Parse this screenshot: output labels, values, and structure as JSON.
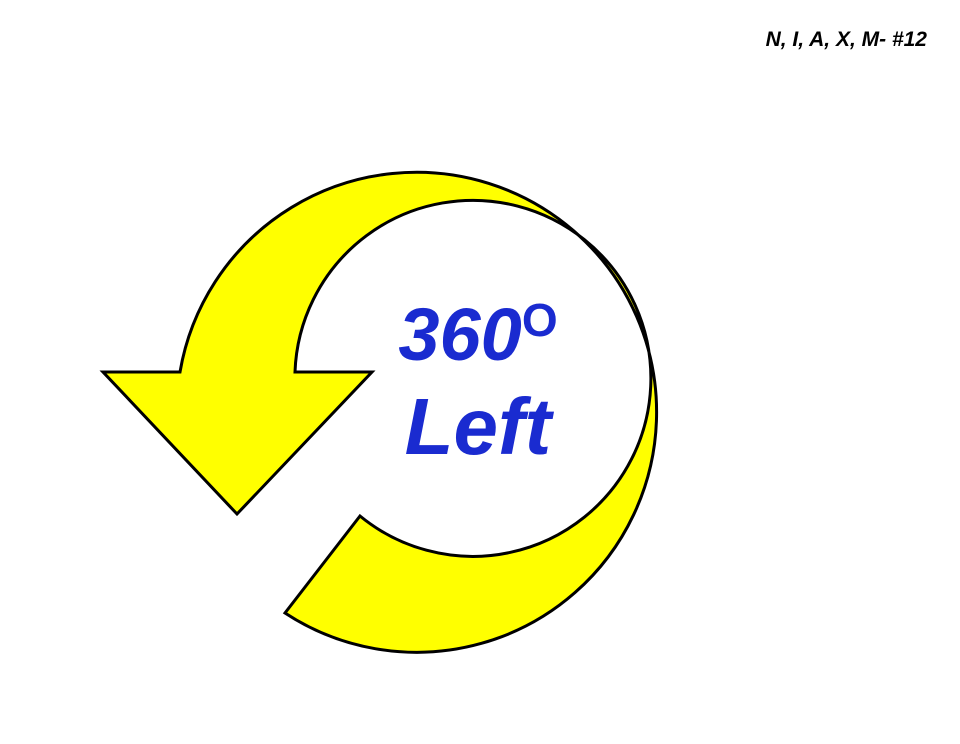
{
  "tag": {
    "text": "N, I, A, X, M- #12"
  },
  "turn": {
    "degrees": "360",
    "degree_mark": "O",
    "direction": "Left"
  },
  "colors": {
    "arrow_fill": "#FFFF00",
    "arrow_outline": "#000000",
    "label_text": "#1A2BD0",
    "background": "#FFFFFF"
  }
}
